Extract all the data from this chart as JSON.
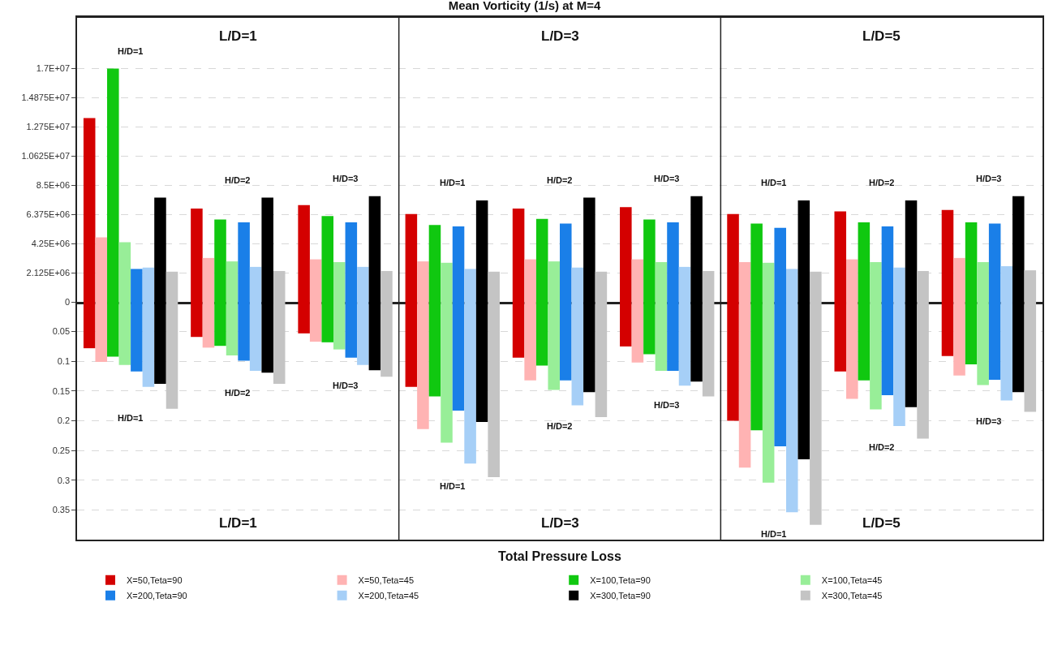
{
  "chart_data": [
    {
      "type": "bar",
      "title": "Mean Vorticity (1/s) at M=4",
      "categories": [
        "H/D=1",
        "H/D=2",
        "H/D=3",
        "H/D=1",
        "H/D=2",
        "H/D=3",
        "H/D=1",
        "H/D=2",
        "H/D=3"
      ],
      "annotations": [
        "L/D=1",
        "L/D=3",
        "L/D=5"
      ],
      "series": [
        {
          "color": "#d40000",
          "values": [
            13400000,
            6800000,
            7050000,
            6400000,
            6800000,
            6900000,
            6400000,
            6600000,
            6700000
          ]
        },
        {
          "color": "#ffb3b3",
          "values": [
            4700000,
            3200000,
            3100000,
            2950000,
            3100000,
            3100000,
            2900000,
            3100000,
            3200000
          ]
        },
        {
          "color": "#10c810",
          "values": [
            17000000,
            6000000,
            6250000,
            5600000,
            6050000,
            6000000,
            5700000,
            5800000,
            5800000
          ]
        },
        {
          "color": "#98ee98",
          "values": [
            4350000,
            2950000,
            2900000,
            2850000,
            2950000,
            2900000,
            2850000,
            2900000,
            2900000
          ]
        },
        {
          "color": "#1a7fe8",
          "values": [
            2400000,
            5800000,
            5800000,
            5500000,
            5700000,
            5800000,
            5400000,
            5500000,
            5700000
          ]
        },
        {
          "color": "#a6cff7",
          "values": [
            2500000,
            2550000,
            2550000,
            2400000,
            2500000,
            2550000,
            2400000,
            2500000,
            2600000
          ]
        },
        {
          "color": "#000000",
          "values": [
            7600000,
            7600000,
            7700000,
            7400000,
            7600000,
            7700000,
            7400000,
            7400000,
            7700000
          ]
        },
        {
          "color": "#c4c4c4",
          "values": [
            2200000,
            2250000,
            2250000,
            2200000,
            2200000,
            2250000,
            2200000,
            2250000,
            2300000
          ]
        }
      ],
      "ylim": [
        0,
        20700000
      ],
      "yticks": [
        {
          "value": 0,
          "label": "0"
        },
        {
          "value": 2125000,
          "label": "2.125E+06"
        },
        {
          "value": 4250000,
          "label": "4.25E+06"
        },
        {
          "value": 6375000,
          "label": "6.375E+06"
        },
        {
          "value": 8500000,
          "label": "8.5E+06"
        },
        {
          "value": 10625000,
          "label": "1.0625E+07"
        },
        {
          "value": 12750000,
          "label": "1.275E+07"
        },
        {
          "value": 14875000,
          "label": "1.4875E+07"
        },
        {
          "value": 17000000,
          "label": "1.7E+07"
        }
      ],
      "grid": "y"
    },
    {
      "type": "bar",
      "xlabel": "Total Pressure Loss",
      "categories": [
        "H/D=1",
        "H/D=2",
        "H/D=3",
        "H/D=1",
        "H/D=2",
        "H/D=3",
        "H/D=1",
        "H/D=2",
        "H/D=3"
      ],
      "annotations": [
        "L/D=1",
        "L/D=3",
        "L/D=5"
      ],
      "series": [
        {
          "name": "X=50,Teta=90",
          "color": "#d40000",
          "values": [
            0.078,
            0.059,
            0.053,
            0.143,
            0.094,
            0.075,
            0.2,
            0.117,
            0.091
          ]
        },
        {
          "name": "X=50,Teta=45",
          "color": "#ffb3b3",
          "values": [
            0.101,
            0.077,
            0.067,
            0.214,
            0.132,
            0.102,
            0.279,
            0.163,
            0.124
          ]
        },
        {
          "name": "X=100,Teta=90",
          "color": "#10c810",
          "values": [
            0.092,
            0.074,
            0.068,
            0.159,
            0.107,
            0.088,
            0.216,
            0.132,
            0.105
          ]
        },
        {
          "name": "X=100,Teta=45",
          "color": "#98ee98",
          "values": [
            0.106,
            0.09,
            0.08,
            0.237,
            0.148,
            0.116,
            0.304,
            0.181,
            0.14
          ]
        },
        {
          "name": "X=200,Teta=90",
          "color": "#1a7fe8",
          "values": [
            0.117,
            0.099,
            0.094,
            0.183,
            0.132,
            0.116,
            0.243,
            0.157,
            0.131
          ]
        },
        {
          "name": "X=200,Teta=45",
          "color": "#a6cff7",
          "values": [
            0.143,
            0.116,
            0.106,
            0.272,
            0.174,
            0.141,
            0.354,
            0.209,
            0.166
          ]
        },
        {
          "name": "X=300,Teta=90",
          "color": "#000000",
          "values": [
            0.138,
            0.119,
            0.115,
            0.202,
            0.152,
            0.134,
            0.265,
            0.177,
            0.152
          ]
        },
        {
          "name": "X=300,Teta=45",
          "color": "#c4c4c4",
          "values": [
            0.18,
            0.138,
            0.126,
            0.295,
            0.194,
            0.159,
            0.375,
            0.23,
            0.185
          ]
        }
      ],
      "ylim": [
        0.4,
        0
      ],
      "yticks": [
        0.05,
        0.1,
        0.15,
        0.2,
        0.25,
        0.3,
        0.35
      ],
      "grid": "y",
      "legend": "bottom"
    }
  ]
}
